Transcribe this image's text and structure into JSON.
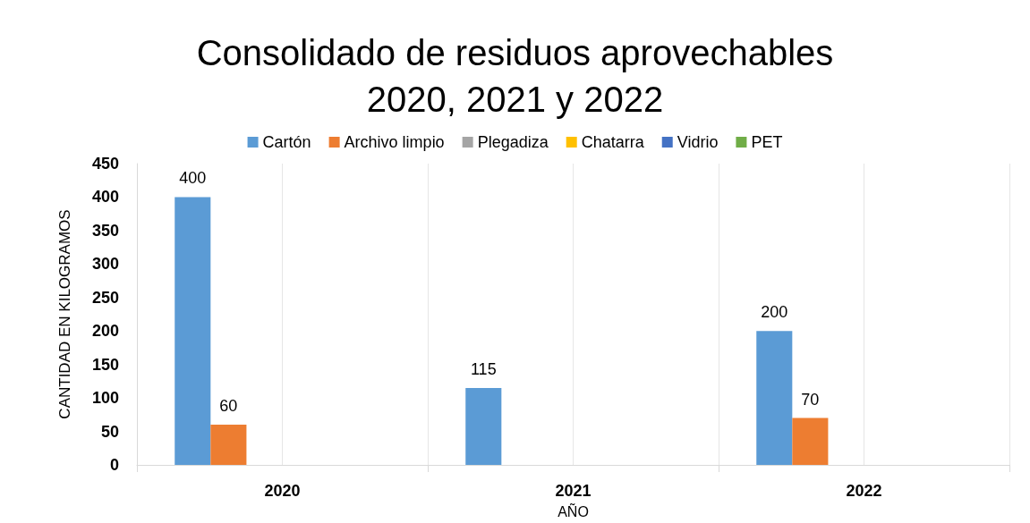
{
  "chart_data": {
    "type": "bar",
    "title": "Consolidado de residuos aprovechables\n2020, 2021 y 2022",
    "xlabel": "AÑO",
    "ylabel": "CANTIDAD EN KILOGRAMOS",
    "categories": [
      "2020",
      "2021",
      "2022"
    ],
    "series": [
      {
        "name": "Cartón",
        "color": "#5b9bd5",
        "values": [
          400,
          115,
          200
        ]
      },
      {
        "name": "Archivo limpio",
        "color": "#ed7d31",
        "values": [
          60,
          null,
          70
        ]
      },
      {
        "name": "Plegadiza",
        "color": "#a5a5a5",
        "values": [
          null,
          null,
          null
        ]
      },
      {
        "name": "Chatarra",
        "color": "#ffc000",
        "values": [
          null,
          null,
          null
        ]
      },
      {
        "name": "Vidrio",
        "color": "#4472c4",
        "values": [
          null,
          null,
          null
        ]
      },
      {
        "name": "PET",
        "color": "#70ad47",
        "values": [
          null,
          null,
          null
        ]
      }
    ],
    "ylim": [
      0,
      450
    ],
    "yticks": [
      0,
      50,
      100,
      150,
      200,
      250,
      300,
      350,
      400,
      450
    ],
    "grid": "x",
    "legend": "top",
    "data_labels": true
  }
}
